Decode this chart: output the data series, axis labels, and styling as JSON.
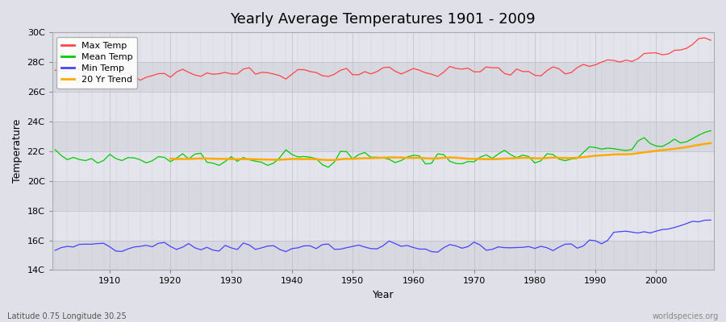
{
  "title": "Yearly Average Temperatures 1901 - 2009",
  "xlabel": "Year",
  "ylabel": "Temperature",
  "year_start": 1901,
  "year_end": 2009,
  "ylim": [
    14,
    30
  ],
  "yticks": [
    14,
    16,
    18,
    20,
    22,
    24,
    26,
    28,
    30
  ],
  "ytick_labels": [
    "14C",
    "16C",
    "18C",
    "20C",
    "22C",
    "24C",
    "26C",
    "28C",
    "30C"
  ],
  "colors": {
    "max": "#ff4444",
    "mean": "#00cc00",
    "min": "#4444ff",
    "trend": "#ffaa00"
  },
  "legend_labels": [
    "Max Temp",
    "Mean Temp",
    "Min Temp",
    "20 Yr Trend"
  ],
  "bg_color": "#e8e8ec",
  "band_color_light": "#dcdce4",
  "band_color_dark": "#e8e8ee",
  "subtitle_left": "Latitude 0.75 Longitude 30.25",
  "subtitle_right": "worldspecies.org",
  "max_base": 27.3,
  "mean_base": 21.5,
  "min_base": 15.5
}
